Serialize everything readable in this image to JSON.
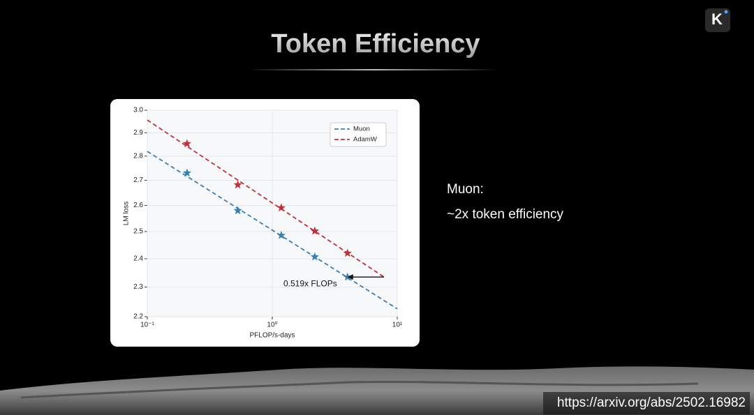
{
  "slide": {
    "title": "Token Efficiency",
    "note_heading": "Muon:",
    "note_text": "~2x token efficiency",
    "source": "https://arxiv.org/abs/2502.16982"
  },
  "chart_data": {
    "type": "scatter",
    "x_label": "PFLOP/s-days",
    "y_label": "LM loss",
    "x_log": true,
    "y_log": true,
    "grid": true,
    "legend_position": "upper right",
    "xlim": [
      0.1,
      10
    ],
    "ylim": [
      2.2,
      3.0
    ],
    "xticks": [
      {
        "value": 0.1,
        "label": "10⁻¹"
      },
      {
        "value": 1,
        "label": "10⁰"
      },
      {
        "value": 10,
        "label": "10¹"
      }
    ],
    "yticks": [
      2.2,
      2.3,
      2.4,
      2.5,
      2.6,
      2.7,
      2.8,
      2.9,
      {
        "value": 3.0,
        "label": "3.0"
      }
    ],
    "series": [
      {
        "name": "Muon",
        "color": "#3a7fb0",
        "x": [
          0.208,
          0.53,
          1.18,
          2.19,
          4.0
        ],
        "values": [
          2.73,
          2.58,
          2.486,
          2.407,
          2.335
        ],
        "fit": {
          "x": [
            0.1,
            10
          ],
          "values": [
            2.82,
            2.226
          ]
        }
      },
      {
        "name": "AdamW",
        "color": "#c0313a",
        "x": [
          0.208,
          0.53,
          1.18,
          2.19,
          4.0
        ],
        "values": [
          2.853,
          2.682,
          2.591,
          2.502,
          2.42
        ],
        "fit": {
          "x": [
            0.1,
            7.83
          ],
          "values": [
            2.956,
            2.335
          ]
        }
      }
    ],
    "annotation": "0.519x FLOPs"
  }
}
